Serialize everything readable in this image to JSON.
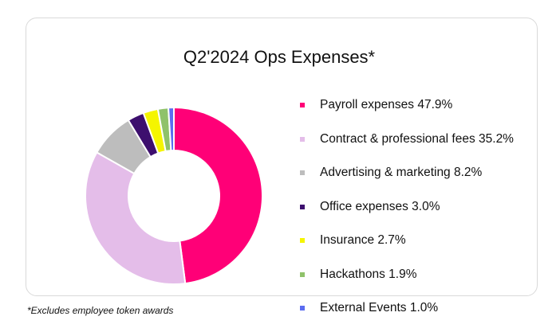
{
  "chart_data": {
    "type": "pie",
    "variant": "donut",
    "title": "Q2'2024 Ops Expenses*",
    "legend_position": "right",
    "slices": [
      {
        "label": "Payroll expenses 47.9%",
        "name": "Payroll expenses",
        "value": 47.9,
        "color": "#ff0077"
      },
      {
        "label": "Contract & professional fees 35.2%",
        "name": "Contract & professional fees",
        "value": 35.2,
        "color": "#e4bde9"
      },
      {
        "label": "Advertising & marketing 8.2%",
        "name": "Advertising & marketing",
        "value": 8.2,
        "color": "#bdbdbd"
      },
      {
        "label": "Office expenses 3.0%",
        "name": "Office expenses",
        "value": 3.0,
        "color": "#3d0f6e"
      },
      {
        "label": "Insurance 2.7%",
        "name": "Insurance",
        "value": 2.7,
        "color": "#f5f500"
      },
      {
        "label": "Hackathons 1.9%",
        "name": "Hackathons",
        "value": 1.9,
        "color": "#8fc26a"
      },
      {
        "label": "External Events 1.0%",
        "name": "External Events",
        "value": 1.0,
        "color": "#5b6cf0"
      }
    ],
    "footnote": "*Excludes employee token awards"
  }
}
